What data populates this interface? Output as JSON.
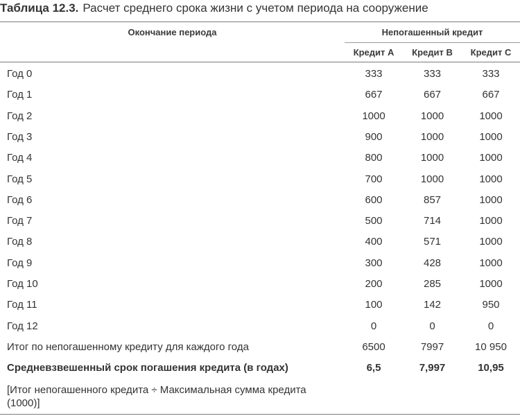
{
  "caption": {
    "number": "Таблица 12.3.",
    "title": "Расчет среднего срока жизни с учетом периода на сооружение"
  },
  "header": {
    "period": "Окончание периода",
    "unpaid": "Непогашенный кредит",
    "col_a": "Кредит А",
    "col_b": "Кредит В",
    "col_c": "Кредит С"
  },
  "rows": [
    {
      "label": "Год 0",
      "a": "333",
      "b": "333",
      "c": "333"
    },
    {
      "label": "Год 1",
      "a": "667",
      "b": "667",
      "c": "667"
    },
    {
      "label": "Год 2",
      "a": "1000",
      "b": "1000",
      "c": "1000"
    },
    {
      "label": "Год 3",
      "a": "900",
      "b": "1000",
      "c": "1000"
    },
    {
      "label": "Год 4",
      "a": "800",
      "b": "1000",
      "c": "1000"
    },
    {
      "label": "Год 5",
      "a": "700",
      "b": "1000",
      "c": "1000"
    },
    {
      "label": "Год 6",
      "a": "600",
      "b": "857",
      "c": "1000"
    },
    {
      "label": "Год 7",
      "a": "500",
      "b": "714",
      "c": "1000"
    },
    {
      "label": "Год 8",
      "a": "400",
      "b": "571",
      "c": "1000"
    },
    {
      "label": "Год 9",
      "a": "300",
      "b": "428",
      "c": "1000"
    },
    {
      "label": "Год 10",
      "a": "200",
      "b": "285",
      "c": "1000"
    },
    {
      "label": "Год 11",
      "a": "100",
      "b": "142",
      "c": "950"
    },
    {
      "label": "Год 12",
      "a": "0",
      "b": "0",
      "c": "0"
    },
    {
      "label": "Итог по непогашенному кредиту для каждого года",
      "a": "6500",
      "b": "7997",
      "c": "10 950"
    },
    {
      "label": "Средневзвешенный срок погашения кредита (в годах)",
      "a": "6,5",
      "b": "7,997",
      "c": "10,95"
    }
  ],
  "note": "[Итог непогашенного кредита ÷ Максимальная сумма кредита (1000)]"
}
